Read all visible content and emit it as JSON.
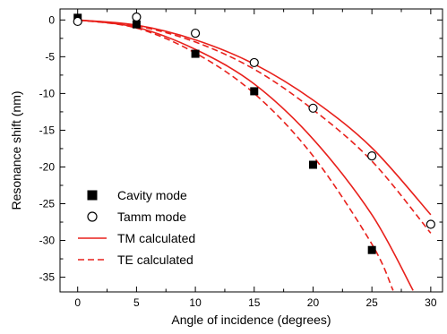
{
  "chart_data": {
    "type": "scatter",
    "title": "",
    "xlabel": "Angle of incidence (degrees)",
    "ylabel": "Resonance shift (nm)",
    "xlim": [
      -1.5,
      31
    ],
    "ylim": [
      -37,
      1.5
    ],
    "xticks": [
      0,
      5,
      10,
      15,
      20,
      25,
      30
    ],
    "yticks": [
      0,
      -5,
      -10,
      -15,
      -20,
      -25,
      -30,
      -35
    ],
    "grid": false,
    "legend_position": "bottom-left",
    "series": [
      {
        "name": "Cavity mode",
        "kind": "markers",
        "marker": "filled-square",
        "color": "#000000",
        "x": [
          0,
          5,
          10,
          15,
          20,
          25
        ],
        "y": [
          0.3,
          -0.6,
          -4.6,
          -9.7,
          -19.7,
          -31.3
        ]
      },
      {
        "name": "Tamm mode",
        "kind": "markers",
        "marker": "open-circle",
        "color": "#000000",
        "x": [
          0,
          5,
          10,
          15,
          20,
          25,
          30
        ],
        "y": [
          -0.2,
          0.4,
          -1.8,
          -5.8,
          -12.0,
          -18.5,
          -27.8
        ]
      },
      {
        "name": "TM calculated",
        "kind": "line",
        "dash": "solid",
        "color": "#e8201b",
        "curves": [
          {
            "x": [
              0,
              5,
              10,
              15,
              20,
              25,
              30
            ],
            "y": [
              0,
              -0.7,
              -2.7,
              -6.0,
              -10.9,
              -17.4,
              -26.5
            ]
          },
          {
            "x": [
              0,
              5,
              10,
              15,
              20,
              25,
              28.5
            ],
            "y": [
              0,
              -1.0,
              -4.0,
              -8.7,
              -16.2,
              -26.5,
              -36.8
            ]
          }
        ]
      },
      {
        "name": "TE calculated",
        "kind": "line",
        "dash": "dashed",
        "color": "#e8201b",
        "curves": [
          {
            "x": [
              0,
              5,
              10,
              15,
              20,
              25,
              30
            ],
            "y": [
              0,
              -0.8,
              -3.0,
              -6.7,
              -12.2,
              -19.2,
              -29.0
            ]
          },
          {
            "x": [
              0,
              5,
              10,
              15,
              20,
              25,
              26.8
            ],
            "y": [
              0,
              -1.1,
              -4.5,
              -10.0,
              -18.5,
              -30.5,
              -36.8
            ]
          }
        ]
      }
    ]
  }
}
